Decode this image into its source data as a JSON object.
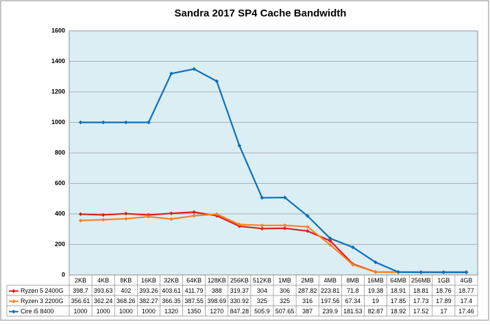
{
  "chart_data": {
    "type": "line",
    "title": "Sandra 2017 SP4 Cache Bandwidth",
    "categories": [
      "2KB",
      "4KB",
      "8KB",
      "16KB",
      "32KB",
      "64KB",
      "128KB",
      "256KB",
      "512KB",
      "1MB",
      "2MB",
      "4MB",
      "8MB",
      "16MB",
      "64MB",
      "256MB",
      "1GB",
      "4GB"
    ],
    "series": [
      {
        "name": "Ryzen 5 2400G",
        "color": "#e31a1c",
        "values": [
          398.7,
          393.63,
          402,
          393.26,
          403.61,
          411.79,
          388,
          319.37,
          304,
          306,
          287.82,
          223.81,
          71.8,
          19.38,
          18.91,
          18.81,
          18.76,
          18.77
        ]
      },
      {
        "name": "Ryzen 3 2200G",
        "color": "#f7831f",
        "values": [
          356.61,
          362.24,
          368.26,
          382.27,
          366.35,
          387.55,
          398.69,
          330.92,
          325,
          325,
          316,
          197.56,
          67.34,
          19,
          17.85,
          17.73,
          17.89,
          17.4
        ]
      },
      {
        "name": "Cire i5 8400",
        "color": "#0a6fb8",
        "values": [
          1000,
          1000,
          1000,
          1000,
          1320,
          1350,
          1270,
          847.28,
          505.9,
          507.65,
          387,
          239.9,
          181.53,
          82.87,
          18.92,
          17.52,
          17,
          17.46
        ]
      }
    ],
    "ylim": [
      0,
      1600
    ],
    "yticks": [
      0,
      200,
      400,
      600,
      800,
      1000,
      1200,
      1400,
      1600
    ],
    "grid": true,
    "background": "#dbeef4"
  }
}
